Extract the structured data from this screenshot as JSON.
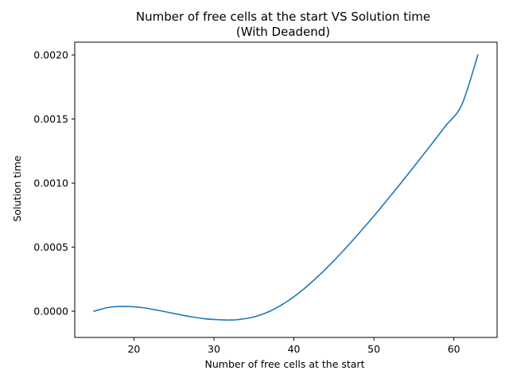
{
  "chart_data": {
    "type": "line",
    "title_line1": "Number of free cells at the start VS Solution time",
    "title_line2": "(With Deadend)",
    "xlabel": "Number of free cells at the start",
    "ylabel": "Solution time",
    "xlim": [
      12.6,
      65.4
    ],
    "ylim": [
      -0.000205,
      0.0021
    ],
    "xticks": [
      20,
      30,
      40,
      50,
      60
    ],
    "xtick_labels": [
      "20",
      "30",
      "40",
      "50",
      "60"
    ],
    "yticks": [
      0.0,
      0.0005,
      0.001,
      0.0015,
      0.002
    ],
    "ytick_labels": [
      "0.0000",
      "0.0005",
      "0.0010",
      "0.0015",
      "0.0020"
    ],
    "grid": false,
    "series": [
      {
        "color": "#1f77b4",
        "x": [
          15,
          17,
          19,
          21,
          23,
          25,
          27,
          29,
          31,
          32,
          33,
          35,
          37,
          39,
          41,
          43,
          45,
          47,
          49,
          51,
          53,
          55,
          57,
          59,
          61,
          63
        ],
        "y": [
          0.0,
          3.1e-05,
          3.7e-05,
          2.8e-05,
          7e-06,
          -1.8e-05,
          -4.2e-05,
          -6e-05,
          -6.8e-05,
          -6.9e-05,
          -6.6e-05,
          -4.5e-05,
          0.0,
          7e-05,
          0.000161,
          0.000271,
          0.000394,
          0.000528,
          0.00067,
          0.000818,
          0.000971,
          0.001128,
          0.001287,
          0.001449,
          0.001613,
          0.002
        ]
      }
    ]
  }
}
